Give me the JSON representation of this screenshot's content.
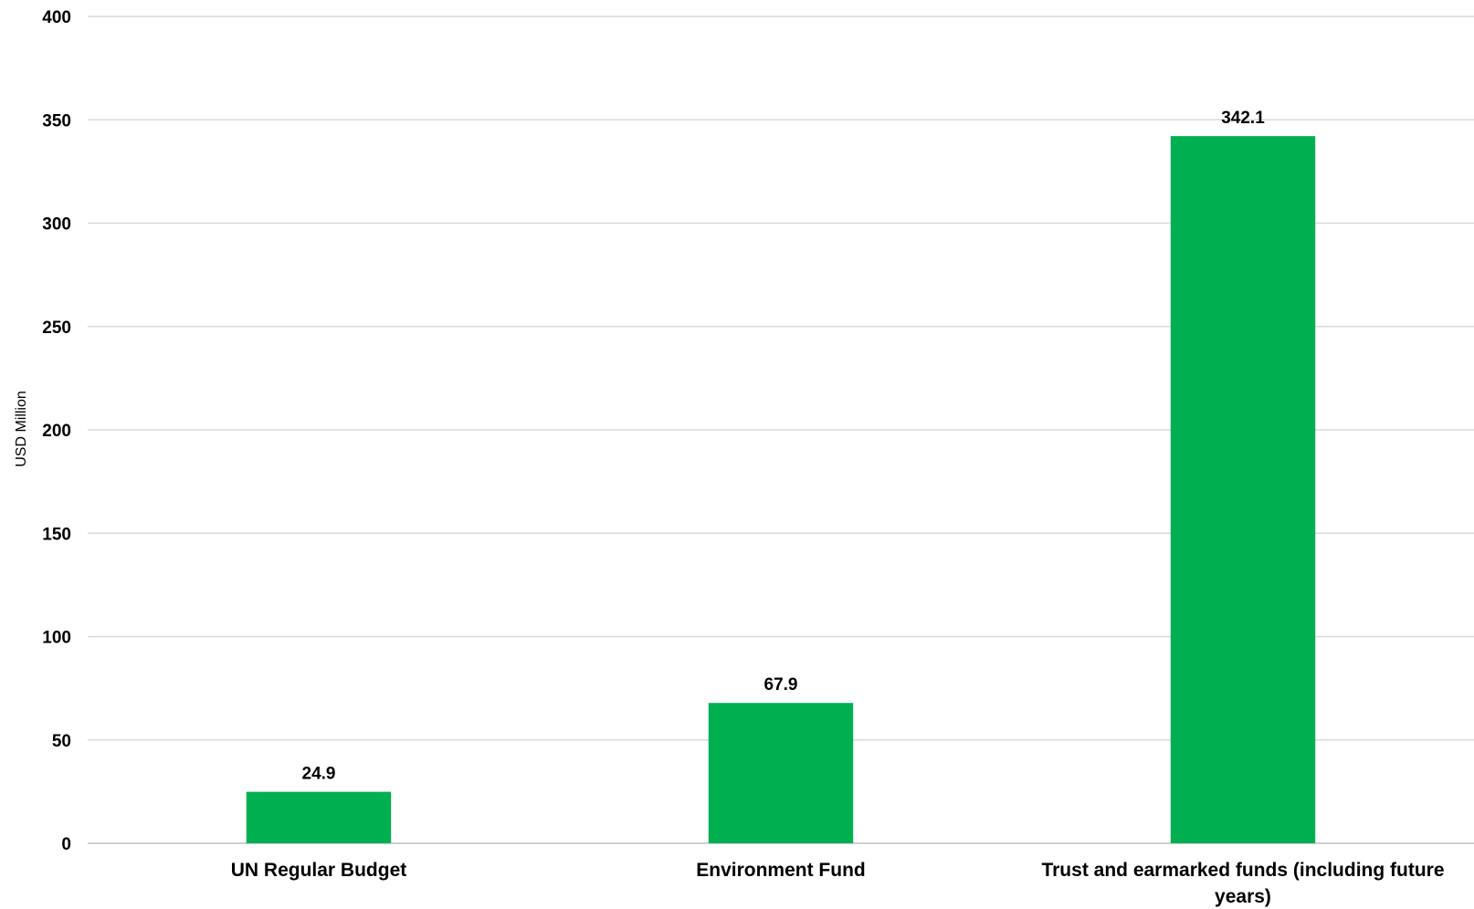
{
  "chart_data": {
    "type": "bar",
    "title": "",
    "xlabel": "",
    "ylabel": "USD Million",
    "categories": [
      "UN Regular Budget",
      "Environment Fund",
      "Trust and earmarked funds (including future years)"
    ],
    "category_lines": [
      [
        "UN Regular Budget"
      ],
      [
        "Environment Fund"
      ],
      [
        "Trust and earmarked funds (including future",
        "years)"
      ]
    ],
    "values": [
      24.9,
      67.9,
      342.1
    ],
    "data_labels": [
      "24.9",
      "67.9",
      "342.1"
    ],
    "ylim": [
      0,
      400
    ],
    "yticks": [
      0,
      50,
      100,
      150,
      200,
      250,
      300,
      350,
      400
    ],
    "ytick_labels": [
      "0",
      "50",
      "100",
      "150",
      "200",
      "250",
      "300",
      "350",
      "400"
    ],
    "grid": true,
    "legend": "none",
    "bar_color": "#00AF50"
  }
}
